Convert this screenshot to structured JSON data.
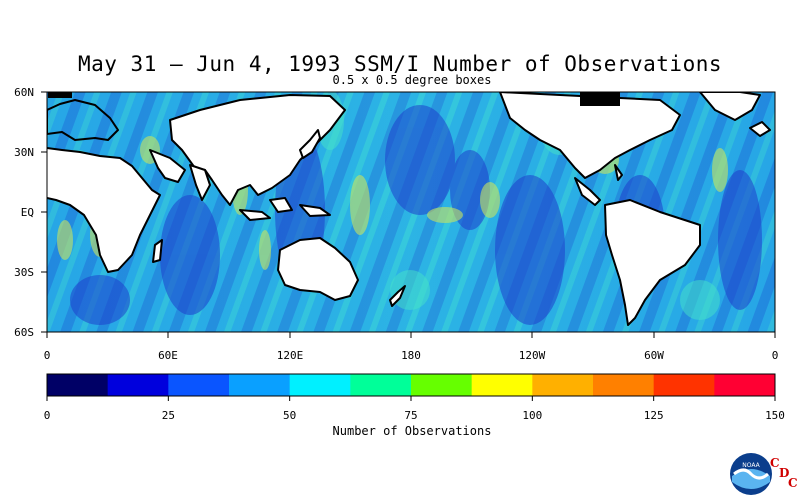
{
  "title": "May 31 – Jun 4, 1993 SSM/I Number of Observations",
  "subtitle": "0.5 x 0.5 degree boxes",
  "lat_labels": [
    "60N",
    "30N",
    "EQ",
    "30S",
    "60S"
  ],
  "lon_labels": [
    "0",
    "60E",
    "120E",
    "180",
    "120W",
    "60W",
    "0"
  ],
  "colorbar": {
    "title": "Number of Observations",
    "ticks": [
      "0",
      "25",
      "50",
      "75",
      "100",
      "125",
      "150"
    ],
    "colors": [
      "#000066",
      "#0000dd",
      "#0a55ff",
      "#0aa0ff",
      "#00f0ff",
      "#00ff99",
      "#66ff00",
      "#ffff00",
      "#ffb000",
      "#ff8000",
      "#ff3300",
      "#ff0033"
    ]
  },
  "map_colors": {
    "ocean_base": "#22a6e6",
    "low_band": "#1f3fcf",
    "mid_band": "#2fd7d7",
    "high_band": "#c8e36a",
    "coast": "#000000"
  },
  "logo": {
    "agency": "NOAA",
    "mark": "CDC"
  }
}
